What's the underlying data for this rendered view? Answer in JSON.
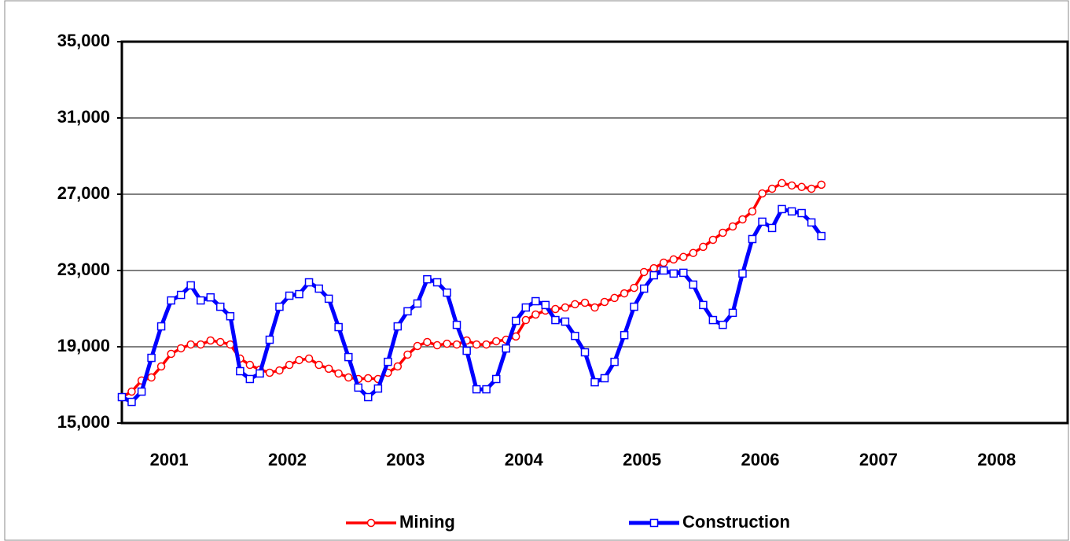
{
  "chart_data": {
    "type": "line",
    "x": [
      2001,
      2001.083,
      2001.167,
      2001.25,
      2001.333,
      2001.417,
      2001.5,
      2001.583,
      2001.667,
      2001.75,
      2001.833,
      2001.917,
      2002,
      2002.083,
      2002.167,
      2002.25,
      2002.333,
      2002.417,
      2002.5,
      2002.583,
      2002.667,
      2002.75,
      2002.833,
      2002.917,
      2003,
      2003.083,
      2003.167,
      2003.25,
      2003.333,
      2003.417,
      2003.5,
      2003.583,
      2003.667,
      2003.75,
      2003.833,
      2003.917,
      2004,
      2004.083,
      2004.167,
      2004.25,
      2004.333,
      2004.417,
      2004.5,
      2004.583,
      2004.667,
      2004.75,
      2004.833,
      2004.917,
      2005,
      2005.083,
      2005.167,
      2005.25,
      2005.333,
      2005.417,
      2005.5,
      2005.583,
      2005.667,
      2005.75,
      2005.833,
      2005.917,
      2006,
      2006.083,
      2006.167,
      2006.25,
      2006.333,
      2006.417,
      2006.5,
      2006.583,
      2006.667,
      2006.75,
      2006.833,
      2006.917
    ],
    "series": [
      {
        "name": "Mining",
        "color": "#ff0000",
        "marker": "circle",
        "values": [
          16360,
          16650,
          17230,
          17390,
          17970,
          18630,
          18920,
          19120,
          19120,
          19330,
          19250,
          19120,
          18380,
          18050,
          17800,
          17640,
          17760,
          18050,
          18300,
          18380,
          18050,
          17850,
          17600,
          17390,
          17310,
          17350,
          17310,
          17640,
          17970,
          18590,
          19040,
          19250,
          19080,
          19160,
          19120,
          19330,
          19120,
          19120,
          19290,
          19370,
          19540,
          20400,
          20690,
          20900,
          20980,
          21060,
          21230,
          21310,
          21060,
          21350,
          21560,
          21800,
          22090,
          22920,
          23120,
          23410,
          23580,
          23710,
          23920,
          24240,
          24610,
          24980,
          25310,
          25680,
          26100,
          27040,
          27290,
          27580,
          27460,
          27380,
          27290,
          27500
        ]
      },
      {
        "name": "Construction",
        "color": "#0000ff",
        "marker": "square",
        "values": [
          16360,
          16110,
          16650,
          18420,
          20070,
          21430,
          21720,
          22220,
          21430,
          21590,
          21100,
          20600,
          17720,
          17310,
          17600,
          19370,
          21100,
          21680,
          21760,
          22380,
          22050,
          21520,
          20030,
          18460,
          16860,
          16360,
          16810,
          18210,
          20070,
          20860,
          21270,
          22540,
          22380,
          21840,
          20150,
          18790,
          16770,
          16770,
          17310,
          18910,
          20360,
          21060,
          21390,
          21190,
          20400,
          20320,
          19570,
          18710,
          17140,
          17350,
          18210,
          19610,
          21100,
          22050,
          22750,
          23000,
          22840,
          22880,
          22260,
          21190,
          20400,
          20150,
          20780,
          22840,
          24650,
          25560,
          25230,
          26220,
          26100,
          26010,
          25520,
          24810
        ]
      }
    ],
    "xlim": [
      2001,
      2009
    ],
    "xticks": [
      {
        "value": 2001.4,
        "label": "2001"
      },
      {
        "value": 2002.4,
        "label": "2002"
      },
      {
        "value": 2003.4,
        "label": "2003"
      },
      {
        "value": 2004.4,
        "label": "2004"
      },
      {
        "value": 2005.4,
        "label": "2005"
      },
      {
        "value": 2006.4,
        "label": "2006"
      },
      {
        "value": 2007.4,
        "label": "2007"
      },
      {
        "value": 2008.4,
        "label": "2008"
      }
    ],
    "ylim": [
      15000,
      35000
    ],
    "yticks": [
      {
        "value": 15000,
        "label": "15,000"
      },
      {
        "value": 19000,
        "label": "19,000"
      },
      {
        "value": 23000,
        "label": "23,000"
      },
      {
        "value": 27000,
        "label": "27,000"
      },
      {
        "value": 31000,
        "label": "31,000"
      },
      {
        "value": 35000,
        "label": "35,000"
      }
    ],
    "grid": true,
    "legend": "bottom"
  }
}
